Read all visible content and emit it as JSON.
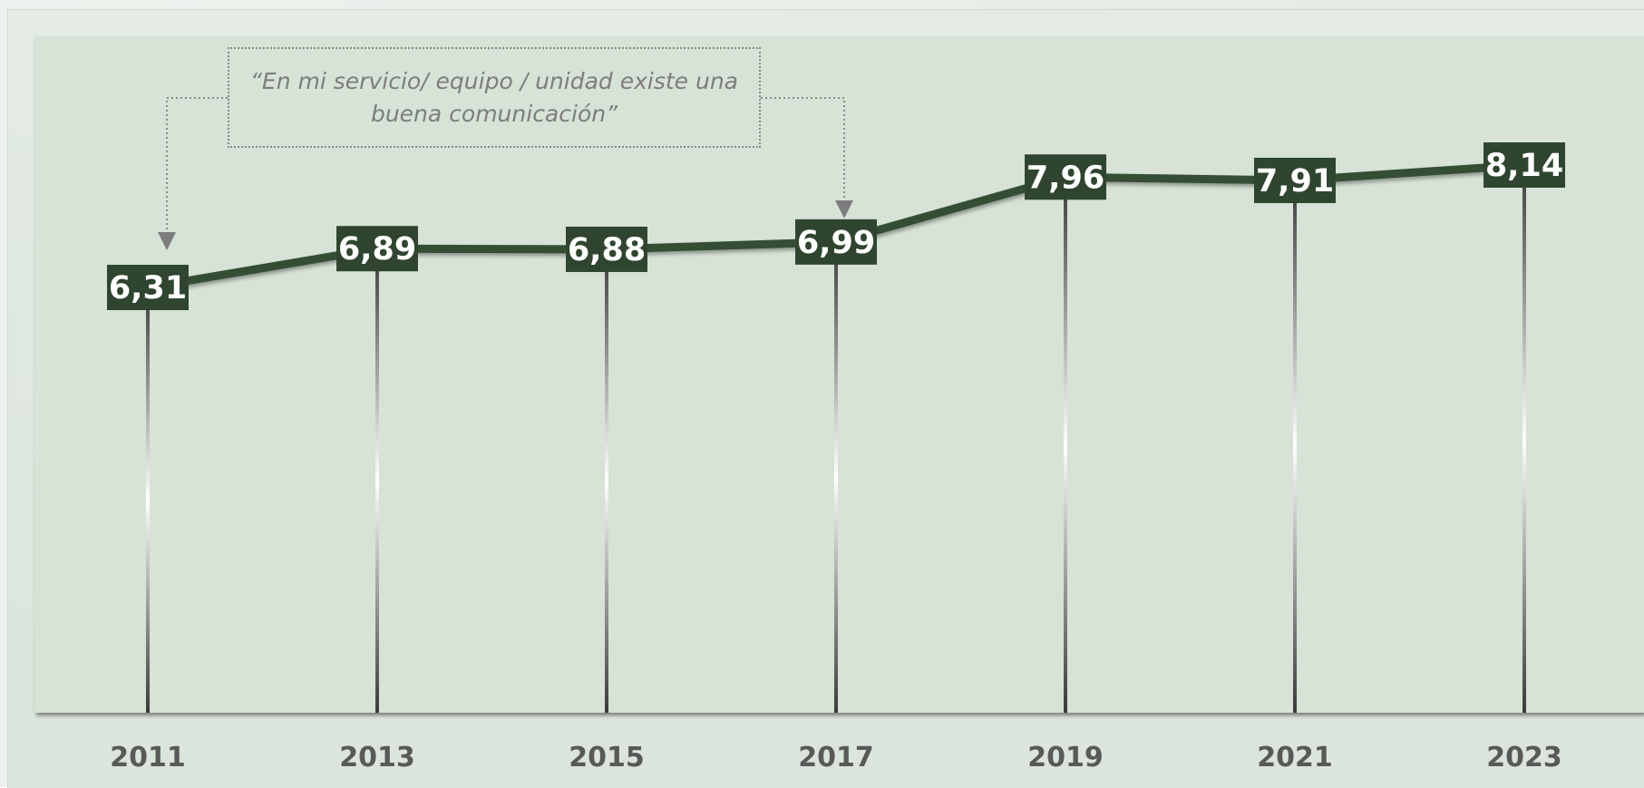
{
  "chart_data": {
    "type": "line",
    "title": "",
    "xlabel": "",
    "ylabel": "",
    "categories": [
      "2011",
      "2013",
      "2015",
      "2017",
      "2019",
      "2021",
      "2023"
    ],
    "values": [
      6.31,
      6.89,
      6.88,
      6.99,
      7.96,
      7.91,
      8.14
    ],
    "value_labels": [
      "6,31",
      "6,89",
      "6,88",
      "6,99",
      "7,96",
      "7,91",
      "8,14"
    ],
    "annotation": "“En mi servicio/ equipo / unidad existe una buena comunicación”",
    "annotation_targets": [
      "2011",
      "2017"
    ],
    "grid": false,
    "legend": "none",
    "colors": {
      "line": "#344d34",
      "label_box": "#2f452f",
      "label_text": "#ffffff",
      "plot_background": "#d6e3d6",
      "year_text": "#595959",
      "annotation_text": "#7d7d7d",
      "annotation_border": "#8a8a8a"
    }
  }
}
